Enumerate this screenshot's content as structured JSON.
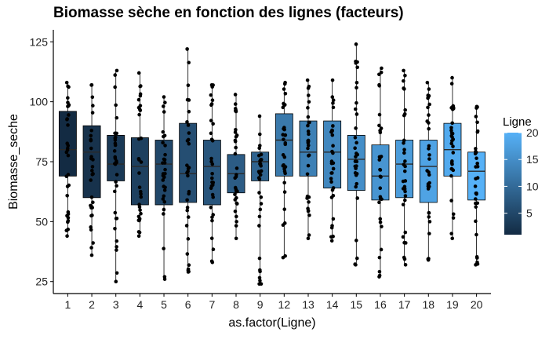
{
  "chart_data": {
    "type": "box",
    "title": "Biomasse sèche en fonction des lignes (facteurs)",
    "xlabel": "as.factor(Ligne)",
    "ylabel": "Biomasse_seche",
    "categories": [
      "1",
      "2",
      "3",
      "4",
      "5",
      "6",
      "7",
      "8",
      "9",
      "12",
      "13",
      "14",
      "15",
      "16",
      "17",
      "18",
      "19",
      "20"
    ],
    "fill_values": [
      1,
      2,
      3,
      4,
      5,
      6,
      7,
      8,
      9,
      12,
      13,
      14,
      15,
      16,
      17,
      18,
      19,
      20
    ],
    "ylim": [
      20,
      130
    ],
    "yticks": [
      25,
      50,
      75,
      100,
      125
    ],
    "boxes": [
      {
        "q1": 69,
        "median": 80,
        "q3": 96,
        "min": 44,
        "max": 108
      },
      {
        "q1": 60,
        "median": 79,
        "q3": 90,
        "min": 36,
        "max": 107
      },
      {
        "q1": 67,
        "median": 74,
        "q3": 86,
        "min": 25,
        "max": 113
      },
      {
        "q1": 57,
        "median": 73,
        "q3": 85,
        "min": 44,
        "max": 112
      },
      {
        "q1": 57,
        "median": 74,
        "q3": 84,
        "min": 26,
        "max": 102
      },
      {
        "q1": 58,
        "median": 70,
        "q3": 91,
        "min": 29,
        "max": 122
      },
      {
        "q1": 57,
        "median": 73,
        "q3": 84,
        "min": 33,
        "max": 107
      },
      {
        "q1": 62,
        "median": 70,
        "q3": 78,
        "min": 43,
        "max": 103
      },
      {
        "q1": 67,
        "median": 75,
        "q3": 79,
        "min": 24,
        "max": 94
      },
      {
        "q1": 69,
        "median": 84,
        "q3": 95,
        "min": 35,
        "max": 108
      },
      {
        "q1": 69,
        "median": 79,
        "q3": 92,
        "min": 43,
        "max": 109
      },
      {
        "q1": 64,
        "median": 79,
        "q3": 92,
        "min": 42,
        "max": 109
      },
      {
        "q1": 63,
        "median": 76,
        "q3": 86,
        "min": 32,
        "max": 124
      },
      {
        "q1": 59,
        "median": 69,
        "q3": 82,
        "min": 27,
        "max": 114
      },
      {
        "q1": 60,
        "median": 74,
        "q3": 84,
        "min": 32,
        "max": 113
      },
      {
        "q1": 58,
        "median": 73,
        "q3": 84,
        "min": 34,
        "max": 108
      },
      {
        "q1": 69,
        "median": 80,
        "q3": 91,
        "min": 43,
        "max": 110
      },
      {
        "q1": 59,
        "median": 71,
        "q3": 79,
        "min": 32,
        "max": 98
      }
    ],
    "legend": {
      "title": "Ligne",
      "ticks": [
        5,
        10,
        15,
        20
      ],
      "range": [
        1,
        20
      ],
      "low_color": "#132B43",
      "high_color": "#56B1F7",
      "placement": "right"
    },
    "grid": false,
    "point_color": "#000000"
  }
}
